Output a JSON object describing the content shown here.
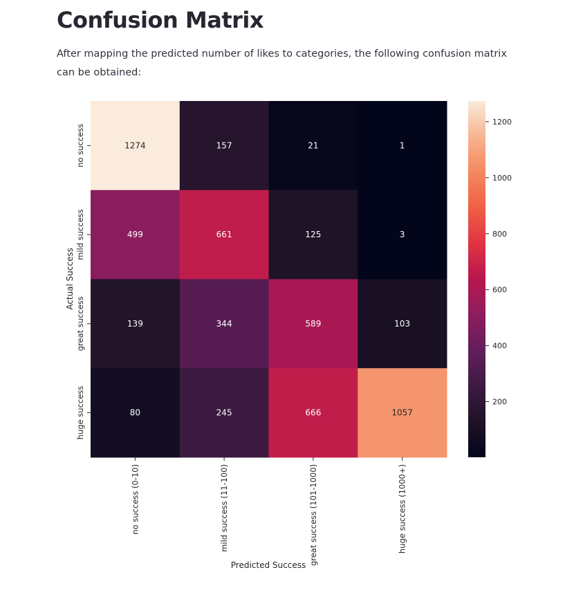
{
  "page": {
    "title": "Confusion Matrix",
    "intro": "After mapping the predicted number of likes to categories, the following confusion matrix can be obtained:"
  },
  "chart_data": {
    "type": "heatmap",
    "title": "",
    "xlabel": "Predicted Success",
    "ylabel": "Actual Success",
    "x_categories": [
      "no success (0-10)",
      "mild success (11-100)",
      "great success (101-1000)",
      "huge success (1000+)"
    ],
    "y_categories": [
      "no success",
      "mild success",
      "great success",
      "huge success"
    ],
    "values": [
      [
        1274,
        157,
        21,
        1
      ],
      [
        499,
        661,
        125,
        3
      ],
      [
        139,
        344,
        589,
        103
      ],
      [
        80,
        245,
        666,
        1057
      ]
    ],
    "annotations": true,
    "colormap": "rocket",
    "colorbar": {
      "min": 1,
      "max": 1274,
      "ticks": [
        200,
        400,
        600,
        800,
        1000,
        1200
      ]
    },
    "annotation_colors": {
      "on_dark": "#ffffff",
      "on_light": "#262626"
    },
    "grid": false
  }
}
